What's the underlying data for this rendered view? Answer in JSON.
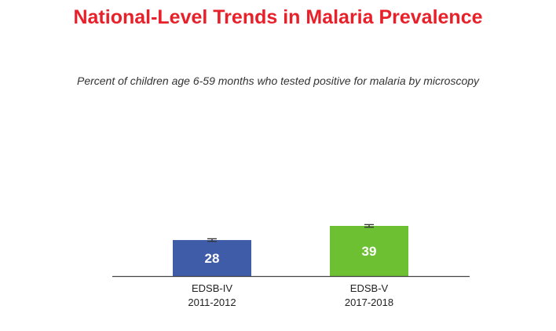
{
  "chart_data": {
    "type": "bar",
    "title": "National-Level Trends in Malaria Prevalence",
    "subtitle": "Percent of children age 6-59 months who tested positive for malaria by microscopy",
    "categories": [
      [
        "EDSB-IV",
        "2011-2012"
      ],
      [
        "EDSB-V",
        "2017-2018"
      ]
    ],
    "values": [
      28,
      39
    ],
    "error_bars": [
      [
        27,
        29
      ],
      [
        38,
        40
      ]
    ],
    "colors": [
      "#3f5ca8",
      "#6ec033"
    ],
    "ylim": [
      0,
      40
    ],
    "grid": false
  }
}
